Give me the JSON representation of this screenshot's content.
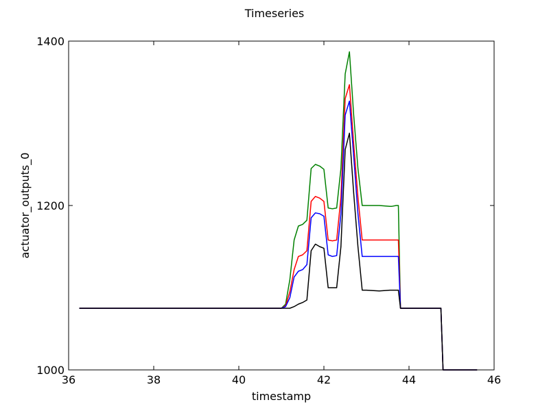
{
  "chart_data": {
    "type": "line",
    "title": "Timeseries",
    "xlabel": "timestamp",
    "ylabel": "actuator_outputs_0",
    "xlim": [
      36,
      46
    ],
    "ylim": [
      1000,
      1400
    ],
    "xticks": [
      36,
      38,
      40,
      42,
      44,
      46
    ],
    "yticks": [
      1000,
      1200,
      1400
    ],
    "grid": false,
    "series": [
      {
        "color": "#008000",
        "x": [
          36.25,
          41.0,
          41.1,
          41.2,
          41.3,
          41.4,
          41.5,
          41.6,
          41.7,
          41.8,
          41.9,
          42.0,
          42.1,
          42.2,
          42.3,
          42.4,
          42.5,
          42.6,
          42.7,
          42.8,
          42.9,
          43.0,
          43.3,
          43.55,
          43.6,
          43.7,
          43.75,
          43.8,
          44.7,
          44.75,
          44.8,
          45.6
        ],
        "y": [
          1075,
          1075,
          1080,
          1110,
          1158,
          1175,
          1177,
          1182,
          1245,
          1250,
          1248,
          1244,
          1197,
          1196,
          1197,
          1245,
          1360,
          1387,
          1310,
          1245,
          1200,
          1200,
          1200,
          1199,
          1199,
          1200,
          1200,
          1075,
          1075,
          1075,
          1000,
          1000
        ]
      },
      {
        "color": "#ff0000",
        "x": [
          36.25,
          41.0,
          41.1,
          41.2,
          41.3,
          41.4,
          41.5,
          41.6,
          41.7,
          41.8,
          41.9,
          42.0,
          42.1,
          42.2,
          42.3,
          42.4,
          42.5,
          42.6,
          42.7,
          42.8,
          42.9,
          43.0,
          43.3,
          43.55,
          43.6,
          43.7,
          43.75,
          43.8,
          44.7,
          44.75,
          44.8,
          45.6
        ],
        "y": [
          1075,
          1075,
          1078,
          1095,
          1122,
          1138,
          1140,
          1145,
          1205,
          1211,
          1209,
          1205,
          1158,
          1157,
          1158,
          1210,
          1330,
          1347,
          1275,
          1210,
          1158,
          1158,
          1158,
          1158,
          1158,
          1158,
          1158,
          1075,
          1075,
          1075,
          1000,
          1000
        ]
      },
      {
        "color": "#0000ff",
        "x": [
          36.25,
          41.0,
          41.1,
          41.2,
          41.3,
          41.4,
          41.5,
          41.6,
          41.7,
          41.8,
          41.9,
          42.0,
          42.1,
          42.2,
          42.3,
          42.4,
          42.5,
          42.6,
          42.7,
          42.8,
          42.9,
          43.0,
          43.3,
          43.55,
          43.6,
          43.7,
          43.75,
          43.8,
          44.7,
          44.75,
          44.8,
          45.6
        ],
        "y": [
          1075,
          1075,
          1077,
          1088,
          1113,
          1120,
          1122,
          1128,
          1185,
          1191,
          1190,
          1187,
          1140,
          1138,
          1139,
          1190,
          1310,
          1327,
          1260,
          1190,
          1138,
          1138,
          1138,
          1138,
          1138,
          1138,
          1138,
          1075,
          1075,
          1075,
          1000,
          1000
        ]
      },
      {
        "color": "#000000",
        "x": [
          36.25,
          41.0,
          41.2,
          41.3,
          41.4,
          41.5,
          41.6,
          41.7,
          41.8,
          41.9,
          42.0,
          42.1,
          42.2,
          42.3,
          42.4,
          42.5,
          42.6,
          42.7,
          42.8,
          42.9,
          43.0,
          43.3,
          43.55,
          43.6,
          43.7,
          43.75,
          43.8,
          44.7,
          44.75,
          44.8,
          45.6
        ],
        "y": [
          1075,
          1075,
          1075,
          1077,
          1080,
          1082,
          1085,
          1145,
          1153,
          1150,
          1148,
          1100,
          1100,
          1100,
          1150,
          1268,
          1288,
          1215,
          1150,
          1097,
          1097,
          1096,
          1097,
          1097,
          1097,
          1097,
          1075,
          1075,
          1075,
          1000,
          1000
        ]
      }
    ]
  }
}
